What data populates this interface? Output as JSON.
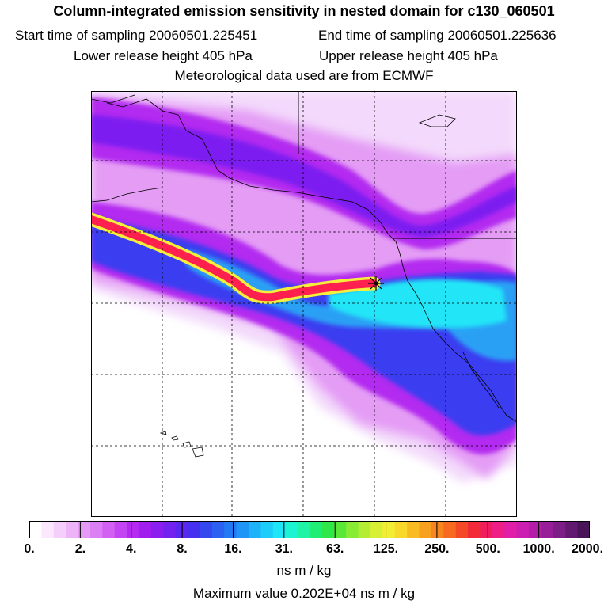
{
  "header": {
    "title": "Column-integrated emission sensitivity in nested domain for c130_060501",
    "start_time": "Start time of sampling 20060501.225451",
    "end_time": "End time of sampling 20060501.225636",
    "lower_release": "Lower release height  405 hPa",
    "upper_release": "Upper release height  405 hPa",
    "met_data": "Meteorological data used are from ECMWF"
  },
  "map": {
    "release_marker": "asterisk",
    "field_colors": {
      "background": "#ffffff",
      "light": "#f3d9fb",
      "pink": "#e49cf5",
      "purple": "#b32af0",
      "violet": "#7b1ff0",
      "blue": "#3a3ef0",
      "sky": "#2aa0f5",
      "cyan": "#23e6f7",
      "red": "#ff2050",
      "yellow": "#f4ee3c"
    }
  },
  "colorbar": {
    "unit": "ns m / kg",
    "tick_labels": [
      "0.",
      "2.",
      "4.",
      "8.",
      "16.",
      "31.",
      "63.",
      "125.",
      "250.",
      "500.",
      "1000.",
      "2000."
    ],
    "colors": [
      "#ffffff",
      "#fbe8fd",
      "#f4cffb",
      "#edb4f8",
      "#e59af6",
      "#dc7ef4",
      "#d160f3",
      "#c446f2",
      "#b42af0",
      "#a01fef",
      "#8a1ff0",
      "#7322f0",
      "#5c27f0",
      "#4630f0",
      "#3548f0",
      "#2c60f2",
      "#247af4",
      "#1f96f6",
      "#1eb2f8",
      "#1dcdf9",
      "#1ee6f6",
      "#1cf3d2",
      "#1ef3a6",
      "#20ee74",
      "#2ee84a",
      "#5ae838",
      "#88eb34",
      "#b4ee34",
      "#d8f034",
      "#f2ee34",
      "#f8d828",
      "#f8bc22",
      "#f8a020",
      "#f8861e",
      "#f76a20",
      "#f54a28",
      "#f22a3a",
      "#f01e5e",
      "#ee1e86",
      "#e01ea8",
      "#cc1eb0",
      "#b31ea8",
      "#971e98",
      "#7c1e86",
      "#621a70",
      "#4a1458"
    ]
  },
  "footer": {
    "unit_label": "ns m / kg",
    "max_value": "Maximum value  0.202E+04 ns m / kg"
  }
}
